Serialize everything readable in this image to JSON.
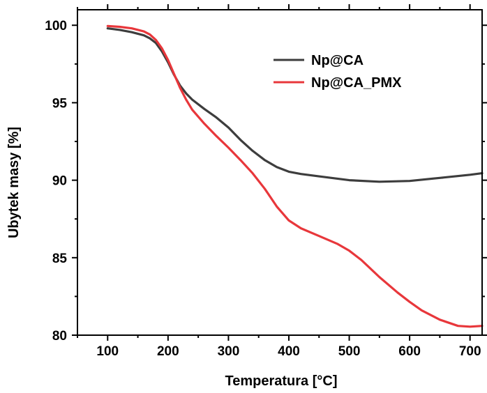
{
  "chart_data": {
    "type": "line",
    "title": "",
    "xlabel": "Temperatura [°C]",
    "ylabel": "Ubytek masy [%]",
    "xlim": [
      50,
      720
    ],
    "ylim": [
      80,
      101
    ],
    "x_ticks": [
      100,
      200,
      300,
      400,
      500,
      600,
      700
    ],
    "y_ticks": [
      80,
      85,
      90,
      95,
      100
    ],
    "x_tick_labels": [
      "100",
      "200",
      "300",
      "400",
      "500",
      "600",
      "700"
    ],
    "y_tick_labels": [
      "80",
      "85",
      "90",
      "95",
      "100"
    ],
    "grid": false,
    "legend_position": "top-right",
    "series": [
      {
        "name": "Np@CA",
        "color": "#3d3d3d",
        "x": [
          100,
          120,
          140,
          160,
          170,
          180,
          190,
          200,
          210,
          220,
          230,
          240,
          260,
          280,
          300,
          320,
          340,
          360,
          380,
          400,
          420,
          450,
          500,
          550,
          600,
          650,
          700,
          720
        ],
        "y": [
          99.8,
          99.7,
          99.55,
          99.35,
          99.15,
          98.85,
          98.3,
          97.6,
          96.8,
          96.1,
          95.6,
          95.2,
          94.6,
          94.05,
          93.4,
          92.6,
          91.9,
          91.3,
          90.85,
          90.55,
          90.4,
          90.25,
          90.0,
          89.9,
          89.95,
          90.15,
          90.35,
          90.45
        ]
      },
      {
        "name": "Np@CA_PMX",
        "color": "#e8373b",
        "x": [
          100,
          120,
          140,
          160,
          170,
          180,
          190,
          200,
          210,
          220,
          230,
          240,
          260,
          280,
          300,
          320,
          340,
          360,
          380,
          400,
          420,
          450,
          480,
          500,
          520,
          550,
          580,
          600,
          620,
          650,
          680,
          700,
          720
        ],
        "y": [
          99.95,
          99.9,
          99.8,
          99.6,
          99.4,
          99.05,
          98.5,
          97.75,
          96.85,
          95.95,
          95.2,
          94.55,
          93.65,
          92.85,
          92.1,
          91.3,
          90.45,
          89.45,
          88.3,
          87.4,
          86.9,
          86.4,
          85.9,
          85.45,
          84.85,
          83.75,
          82.75,
          82.15,
          81.6,
          81.0,
          80.6,
          80.55,
          80.6
        ]
      }
    ]
  }
}
